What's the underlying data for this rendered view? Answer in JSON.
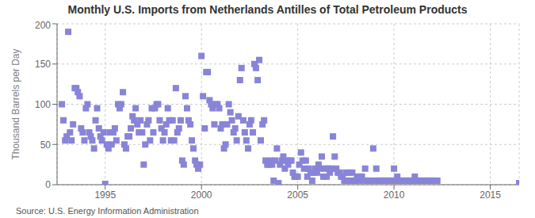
{
  "chart_data": {
    "type": "scatter",
    "title": "Monthly U.S. Imports from Netherlands Antilles of Total Petroleum Products",
    "ylabel": "Thousand Barrels per Day",
    "annotations": [
      "Source: U.S. Energy Information Administration"
    ],
    "color": "#8884d8",
    "marker": "square",
    "grid": true,
    "xlim": [
      1992.5,
      2016.5
    ],
    "xticks": [
      1995,
      2000,
      2005,
      2010,
      2015
    ],
    "ylim": [
      0,
      200
    ],
    "yticks": [
      0,
      50,
      100,
      150,
      200
    ],
    "x": [
      1992.75,
      1992.83,
      1992.92,
      1993.0,
      1993.08,
      1993.17,
      1993.25,
      1993.33,
      1993.42,
      1993.5,
      1993.58,
      1993.67,
      1993.75,
      1993.83,
      1993.92,
      1994.0,
      1994.08,
      1994.17,
      1994.25,
      1994.33,
      1994.42,
      1994.5,
      1994.58,
      1994.67,
      1994.75,
      1994.83,
      1994.92,
      1995.0,
      1995.08,
      1995.17,
      1995.25,
      1995.33,
      1995.42,
      1995.5,
      1995.58,
      1995.67,
      1995.75,
      1995.83,
      1995.92,
      1996.0,
      1996.08,
      1996.17,
      1996.25,
      1996.33,
      1996.42,
      1996.5,
      1996.58,
      1996.67,
      1996.75,
      1996.83,
      1996.92,
      1997.0,
      1997.08,
      1997.17,
      1997.25,
      1997.33,
      1997.42,
      1997.5,
      1997.58,
      1997.67,
      1997.75,
      1997.83,
      1997.92,
      1998.0,
      1998.08,
      1998.17,
      1998.25,
      1998.33,
      1998.42,
      1998.5,
      1998.58,
      1998.67,
      1998.75,
      1998.83,
      1998.92,
      1999.0,
      1999.08,
      1999.17,
      1999.25,
      1999.33,
      1999.42,
      1999.5,
      1999.58,
      1999.67,
      1999.75,
      1999.83,
      1999.92,
      2000.0,
      2000.08,
      2000.17,
      2000.25,
      2000.33,
      2000.42,
      2000.5,
      2000.58,
      2000.67,
      2000.75,
      2000.83,
      2000.92,
      2001.0,
      2001.08,
      2001.17,
      2001.25,
      2001.33,
      2001.42,
      2001.5,
      2001.58,
      2001.67,
      2001.75,
      2001.83,
      2001.92,
      2002.0,
      2002.08,
      2002.17,
      2002.25,
      2002.33,
      2002.42,
      2002.5,
      2002.58,
      2002.67,
      2002.75,
      2002.83,
      2002.92,
      2003.0,
      2003.08,
      2003.17,
      2003.25,
      2003.33,
      2003.42,
      2003.5,
      2003.58,
      2003.67,
      2003.75,
      2003.83,
      2003.92,
      2004.0,
      2004.08,
      2004.17,
      2004.25,
      2004.33,
      2004.42,
      2004.5,
      2004.58,
      2004.67,
      2004.75,
      2004.83,
      2004.92,
      2005.0,
      2005.08,
      2005.17,
      2005.25,
      2005.33,
      2005.42,
      2005.5,
      2005.58,
      2005.67,
      2005.75,
      2005.83,
      2005.92,
      2006.0,
      2006.08,
      2006.17,
      2006.25,
      2006.33,
      2006.42,
      2006.5,
      2006.58,
      2006.67,
      2006.75,
      2006.83,
      2006.92,
      2007.0,
      2007.08,
      2007.17,
      2007.25,
      2007.33,
      2007.42,
      2007.5,
      2007.58,
      2007.67,
      2007.75,
      2007.83,
      2007.92,
      2008.0,
      2008.08,
      2008.17,
      2008.25,
      2008.33,
      2008.42,
      2008.5,
      2008.58,
      2008.67,
      2008.75,
      2008.83,
      2008.92,
      2009.0,
      2009.08,
      2009.17,
      2009.25,
      2009.33,
      2009.42,
      2009.5,
      2009.58,
      2009.67,
      2009.75,
      2009.83,
      2009.92,
      2010.0,
      2010.08,
      2010.17,
      2010.25,
      2010.33,
      2010.42,
      2010.5,
      2010.58,
      2010.67,
      2010.75,
      2010.83,
      2010.92,
      2011.0,
      2011.08,
      2011.17,
      2011.25,
      2011.33,
      2011.42,
      2011.5,
      2011.58,
      2011.67,
      2011.75,
      2011.83,
      2011.92,
      2012.0,
      2012.08,
      2012.17,
      2012.25,
      2016.5
    ],
    "values": [
      100,
      80,
      55,
      60,
      190,
      65,
      55,
      75,
      120,
      120,
      115,
      110,
      70,
      65,
      55,
      95,
      100,
      65,
      60,
      55,
      45,
      80,
      95,
      70,
      60,
      55,
      65,
      1,
      50,
      45,
      65,
      50,
      65,
      70,
      55,
      100,
      95,
      100,
      115,
      50,
      45,
      60,
      60,
      70,
      85,
      80,
      95,
      75,
      65,
      80,
      65,
      25,
      50,
      75,
      80,
      55,
      95,
      65,
      95,
      100,
      100,
      80,
      70,
      55,
      65,
      75,
      95,
      80,
      55,
      80,
      55,
      120,
      65,
      70,
      80,
      30,
      25,
      110,
      95,
      80,
      75,
      55,
      45,
      30,
      25,
      20,
      25,
      160,
      110,
      70,
      140,
      140,
      105,
      100,
      95,
      75,
      100,
      100,
      95,
      70,
      75,
      45,
      50,
      75,
      100,
      90,
      80,
      65,
      70,
      55,
      85,
      130,
      145,
      80,
      65,
      55,
      45,
      75,
      80,
      65,
      150,
      145,
      130,
      155,
      55,
      75,
      80,
      30,
      25,
      25,
      30,
      25,
      5,
      30,
      45,
      2,
      25,
      30,
      35,
      20,
      30,
      25,
      30,
      30,
      15,
      10,
      10,
      10,
      25,
      40,
      30,
      20,
      30,
      10,
      20,
      15,
      5,
      15,
      20,
      15,
      25,
      20,
      35,
      10,
      20,
      10,
      20,
      15,
      20,
      60,
      35,
      20,
      15,
      15,
      10,
      10,
      5,
      15,
      5,
      15,
      5,
      15,
      5,
      5,
      10,
      5,
      10,
      10,
      5,
      20,
      5,
      5,
      5,
      5,
      45,
      5,
      20,
      5,
      5,
      5,
      5,
      5,
      5,
      5,
      5,
      5,
      5,
      20,
      5,
      10,
      5,
      5,
      5,
      5,
      5,
      5,
      5,
      5,
      5,
      5,
      10,
      5,
      5,
      5,
      5,
      5,
      5,
      5,
      5,
      5,
      5,
      5,
      5,
      5,
      5,
      2
    ]
  }
}
